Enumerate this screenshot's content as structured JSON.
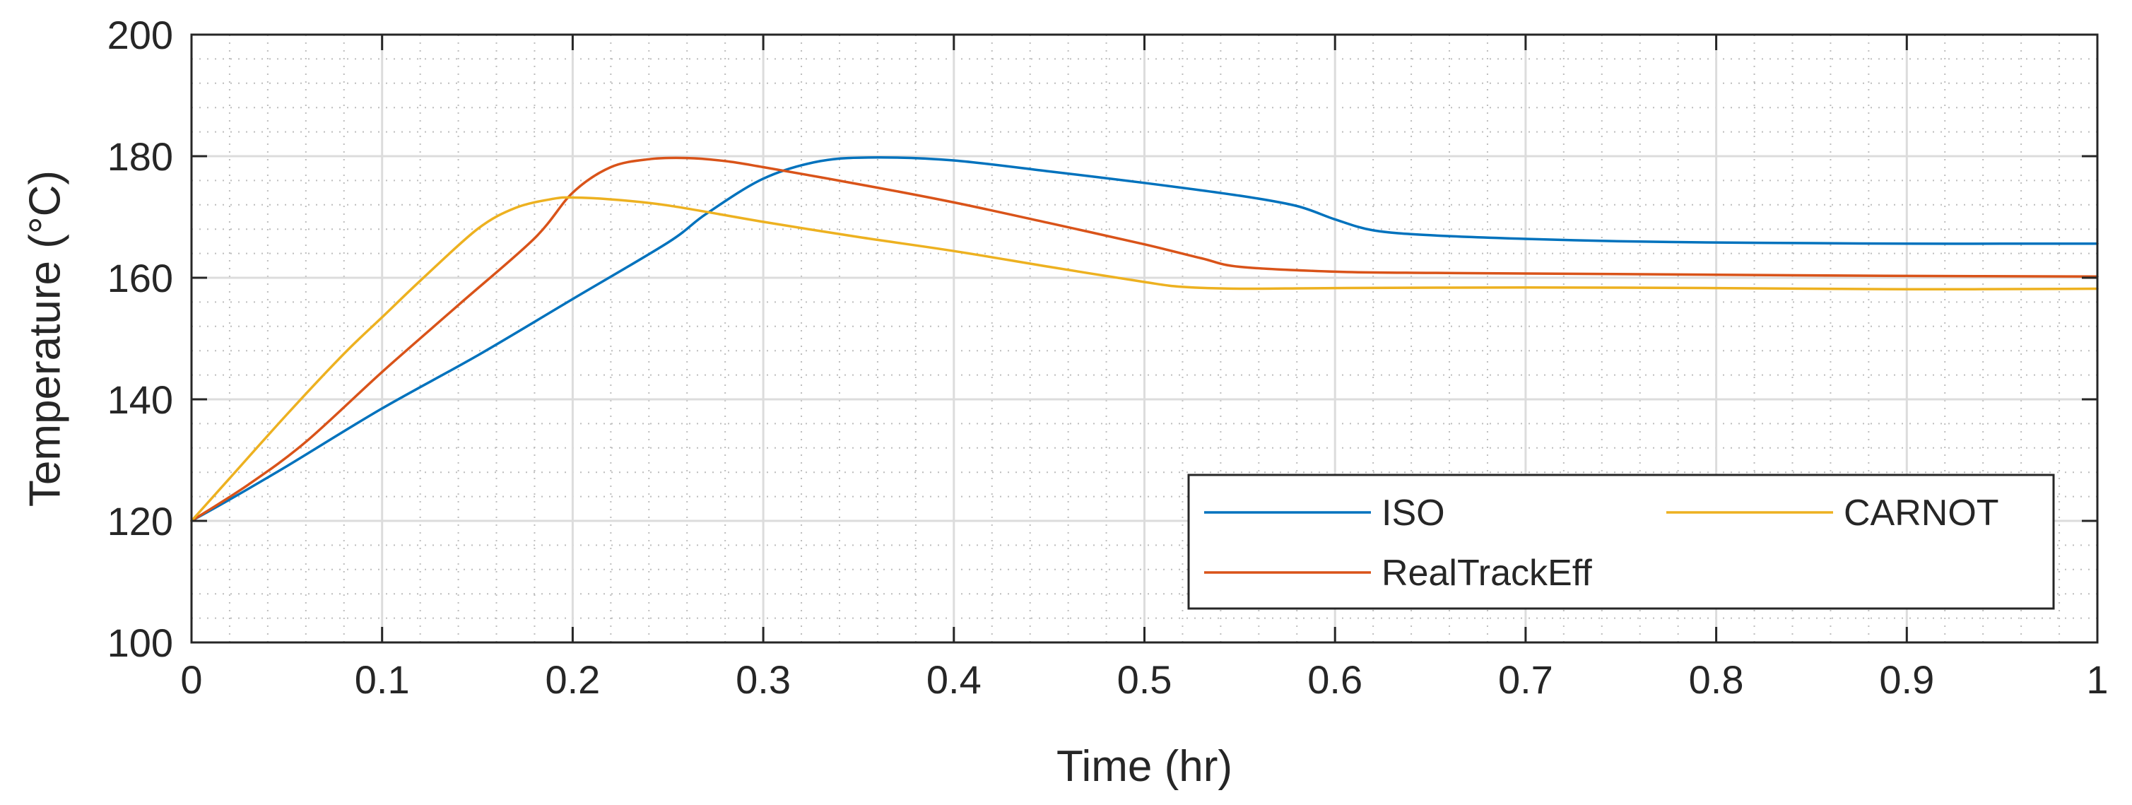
{
  "chart_data": {
    "type": "line",
    "title": "",
    "xlabel": "Time (hr)",
    "ylabel": "Temperature (°C)",
    "xlim": [
      0,
      1
    ],
    "ylim": [
      100,
      200
    ],
    "xticks": [
      0,
      0.1,
      0.2,
      0.3,
      0.4,
      0.5,
      0.6,
      0.7,
      0.8,
      0.9,
      1
    ],
    "yticks": [
      100,
      120,
      140,
      160,
      180,
      200
    ],
    "xtick_labels": [
      "0",
      "0.1",
      "0.2",
      "0.3",
      "0.4",
      "0.5",
      "0.6",
      "0.7",
      "0.8",
      "0.9",
      "1"
    ],
    "ytick_labels": [
      "100",
      "120",
      "140",
      "160",
      "180",
      "200"
    ],
    "grid": "major and minor",
    "legend_position": "bottom-right",
    "series": [
      {
        "name": "ISO",
        "color": "#0072BD",
        "x": [
          0,
          0.02,
          0.05,
          0.1,
          0.15,
          0.2,
          0.25,
          0.27,
          0.3,
          0.33,
          0.36,
          0.4,
          0.45,
          0.5,
          0.55,
          0.58,
          0.6,
          0.62,
          0.65,
          0.7,
          0.75,
          0.8,
          0.85,
          0.9,
          0.95,
          1.0
        ],
        "values": [
          120,
          123.5,
          129,
          138.5,
          147.2,
          156.5,
          165.8,
          170.5,
          176.3,
          179.2,
          179.8,
          179.3,
          177.5,
          175.6,
          173.5,
          171.8,
          169.6,
          167.8,
          167.0,
          166.4,
          166.0,
          165.8,
          165.7,
          165.6,
          165.6,
          165.6
        ]
      },
      {
        "name": "RealTrackEff",
        "color": "#D95319",
        "x": [
          0,
          0.03,
          0.06,
          0.1,
          0.14,
          0.18,
          0.2,
          0.22,
          0.24,
          0.26,
          0.28,
          0.3,
          0.35,
          0.4,
          0.45,
          0.5,
          0.53,
          0.55,
          0.6,
          0.65,
          0.7,
          0.8,
          0.9,
          1.0
        ],
        "values": [
          120,
          126,
          133,
          144.5,
          155.5,
          166.5,
          174,
          178.2,
          179.5,
          179.7,
          179.2,
          178.2,
          175.4,
          172.4,
          169,
          165.5,
          163.2,
          161.8,
          161.0,
          160.8,
          160.7,
          160.5,
          160.3,
          160.2
        ]
      },
      {
        "name": "CARNOT",
        "color": "#EDB120",
        "x": [
          0,
          0.02,
          0.05,
          0.08,
          0.1,
          0.12,
          0.15,
          0.17,
          0.19,
          0.2,
          0.22,
          0.25,
          0.3,
          0.35,
          0.4,
          0.45,
          0.5,
          0.52,
          0.55,
          0.6,
          0.7,
          0.8,
          0.9,
          1.0
        ],
        "values": [
          120,
          127,
          137.5,
          147.5,
          153.5,
          159.5,
          168,
          171.5,
          173,
          173.2,
          172.9,
          171.9,
          169.2,
          166.7,
          164.4,
          161.8,
          159.3,
          158.5,
          158.2,
          158.3,
          158.4,
          158.3,
          158.1,
          158.2
        ]
      }
    ]
  }
}
